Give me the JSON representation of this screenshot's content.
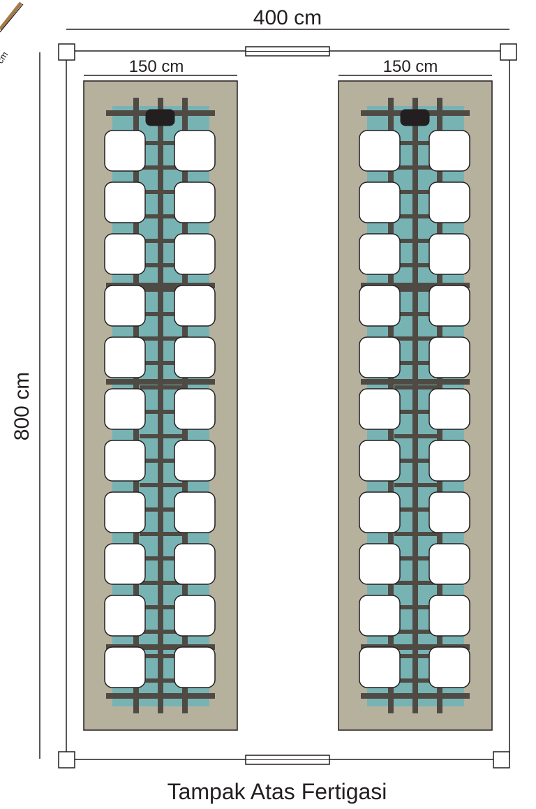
{
  "dimensions": {
    "total_width": "400 cm",
    "total_length": "800 cm",
    "bed_width_left": "150 cm",
    "bed_width_right": "150 cm",
    "corner_fragment": "cm"
  },
  "title": "Tampak Atas Fertigasi",
  "layout": {
    "beds": 2,
    "pots_per_bed": 22,
    "pot_columns_per_bed": 2,
    "pot_rows_per_bed": 11
  },
  "colors": {
    "bed_base": "#b5b19d",
    "water_channel": "#78b3b4",
    "pipe": "#4f4b44",
    "pot": "#ffffff",
    "outline": "#231f20",
    "tank": "#231f20",
    "corner_stake": "#a57b4a"
  }
}
